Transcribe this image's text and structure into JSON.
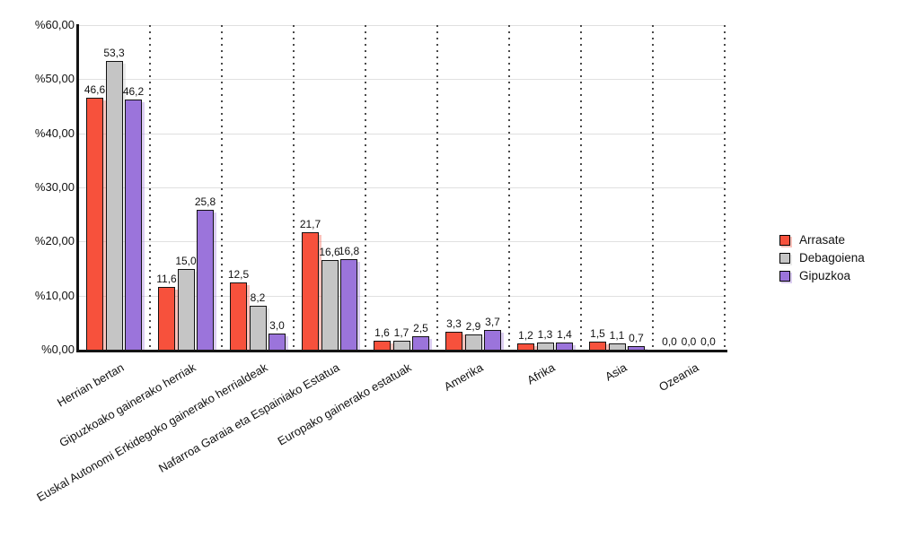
{
  "chart_data": {
    "type": "bar",
    "categories": [
      "Herrian bertan",
      "Gipuzkoako gainerako herriak",
      "Euskal Autonomi Erkidegoko gainerako herrialdeak",
      "Nafarroa Garaia eta Espainiako Estatua",
      "Europako gainerako estatuak",
      "Amerika",
      "Afrika",
      "Asia",
      "Ozeania"
    ],
    "series": [
      {
        "name": "Arrasate",
        "color": "#f7513c",
        "values": [
          46.6,
          11.6,
          12.5,
          21.7,
          1.6,
          3.3,
          1.2,
          1.5,
          0.0
        ]
      },
      {
        "name": "Debagoiena",
        "color": "#c5c5c5",
        "values": [
          53.3,
          15.0,
          8.2,
          16.6,
          1.7,
          2.9,
          1.3,
          1.1,
          0.0
        ]
      },
      {
        "name": "Gipuzkoa",
        "color": "#9b74db",
        "values": [
          46.2,
          25.8,
          3.0,
          16.8,
          2.5,
          3.7,
          1.4,
          0.7,
          0.0
        ]
      }
    ],
    "data_labels": {
      "Arrasate": [
        "46,6",
        "11,6",
        "12,5",
        "21,7",
        "1,6",
        "3,3",
        "1,2",
        "1,5",
        "0,0"
      ],
      "Debagoiena": [
        "53,3",
        "15,0",
        "8,2",
        "16,6",
        "1,7",
        "2,9",
        "1,3",
        "1,1",
        "0,0"
      ],
      "Gipuzkoa": [
        "46,2",
        "25,8",
        "3,0",
        "16,8",
        "2,5",
        "3,7",
        "1,4",
        "0,7",
        "0,0"
      ]
    },
    "title": "",
    "xlabel": "",
    "ylabel": "",
    "ylim": [
      0,
      60
    ],
    "y_tick_labels": [
      "%0,00",
      "%10,00",
      "%20,00",
      "%30,00",
      "%40,00",
      "%50,00",
      "%60,00"
    ],
    "y_tick_values": [
      0,
      10,
      20,
      30,
      40,
      50,
      60
    ],
    "grid": {
      "horizontal": "solid light gray",
      "vertical": "dotted category separators"
    },
    "legend_position": "right",
    "legend_entries": [
      "Arrasate",
      "Debagoiena",
      "Gipuzkoa"
    ]
  },
  "style_colors": {
    "bar_border": "#121212",
    "axis": "#141414",
    "gridline": "#e0e0e0",
    "dotted_line": "#4a4a4a",
    "text": "#111111",
    "background": "#ffffff"
  }
}
